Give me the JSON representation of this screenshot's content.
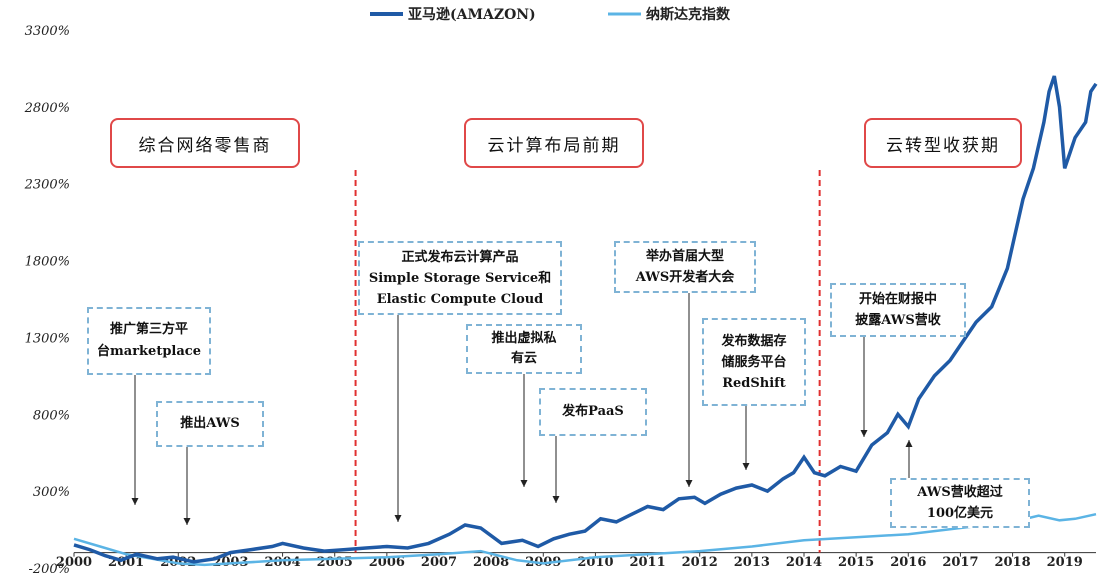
{
  "legend": {
    "amazon": "亚马逊(AMAZON)",
    "nasdaq": "纳斯达克指数"
  },
  "colors": {
    "amazon": "#1f5aa6",
    "nasdaq": "#5bb4e5",
    "phase_divider": "#e03030",
    "phase_border": "#e04848",
    "annotation_border": "#7fb3d5"
  },
  "phases": [
    {
      "label": "综合网络零售商"
    },
    {
      "label": "云计算布局前期"
    },
    {
      "label": "云转型收获期"
    }
  ],
  "phase_dividers_year": [
    2005.4,
    2014.3
  ],
  "annotations": [
    {
      "text": "推广第三方平\n台marketplace",
      "x": 2001.2
    },
    {
      "text": "推出AWS",
      "x": 2002.1
    },
    {
      "text": "正式发布云计算产品\nSimple Storage Service和\nElastic Compute Cloud",
      "x": 2006.0
    },
    {
      "text": "推出虚拟私\n有云",
      "x": 2008.5
    },
    {
      "text": "发布PaaS",
      "x": 2009.1
    },
    {
      "text": "举办首届大型\nAWS开发者大会",
      "x": 2011.7
    },
    {
      "text": "发布数据存\n储服务平台\nRedShift",
      "x": 2012.8
    },
    {
      "text": "开始在财报中\n披露AWS营收",
      "x": 2015.2
    },
    {
      "text": "AWS营收超过\n100亿美元",
      "x": 2016.0
    }
  ],
  "chart_data": {
    "type": "line",
    "title": "",
    "xlabel": "",
    "ylabel": "",
    "xlim": [
      2000,
      2019.6
    ],
    "ylim": [
      -200,
      3300
    ],
    "x_ticks": [
      "2000",
      "2001",
      "2002",
      "2003",
      "2004",
      "2005",
      "2006",
      "2007",
      "2008",
      "2009",
      "2010",
      "2011",
      "2012",
      "2013",
      "2014",
      "2015",
      "2016",
      "2017",
      "2018",
      "2019"
    ],
    "y_ticks": [
      "-200%",
      "300%",
      "800%",
      "1300%",
      "1800%",
      "2300%",
      "2800%",
      "3300%"
    ],
    "y_tick_values": [
      -200,
      300,
      800,
      1300,
      1800,
      2300,
      2800,
      3300
    ],
    "legend_position": "top-center",
    "grid": false,
    "series": [
      {
        "name": "亚马逊(AMAZON)",
        "x": [
          2000.0,
          2000.3,
          2000.6,
          2000.9,
          2001.2,
          2001.6,
          2001.9,
          2002.3,
          2002.7,
          2003.0,
          2003.4,
          2003.8,
          2004.0,
          2004.4,
          2004.8,
          2005.2,
          2005.6,
          2006.0,
          2006.4,
          2006.8,
          2007.2,
          2007.5,
          2007.8,
          2008.2,
          2008.6,
          2008.9,
          2009.2,
          2009.5,
          2009.8,
          2010.1,
          2010.4,
          2010.7,
          2011.0,
          2011.3,
          2011.6,
          2011.9,
          2012.1,
          2012.4,
          2012.7,
          2013.0,
          2013.3,
          2013.6,
          2013.8,
          2014.0,
          2014.2,
          2014.4,
          2014.7,
          2015.0,
          2015.3,
          2015.6,
          2015.8,
          2016.0,
          2016.2,
          2016.5,
          2016.8,
          2017.0,
          2017.3,
          2017.6,
          2017.9,
          2018.0,
          2018.2,
          2018.4,
          2018.6,
          2018.7,
          2018.8,
          2018.9,
          2019.0,
          2019.1,
          2019.2,
          2019.4,
          2019.5,
          2019.6
        ],
        "values": [
          -50,
          -80,
          -120,
          -150,
          -110,
          -140,
          -130,
          -160,
          -140,
          -100,
          -80,
          -60,
          -40,
          -70,
          -90,
          -80,
          -70,
          -60,
          -70,
          -40,
          20,
          80,
          60,
          -40,
          -20,
          -60,
          -10,
          20,
          40,
          120,
          100,
          150,
          200,
          180,
          250,
          260,
          220,
          280,
          320,
          340,
          300,
          380,
          420,
          520,
          420,
          400,
          460,
          430,
          600,
          680,
          800,
          720,
          900,
          1050,
          1150,
          1250,
          1400,
          1500,
          1750,
          1900,
          2200,
          2400,
          2700,
          2900,
          3000,
          2800,
          2400,
          2500,
          2600,
          2700,
          2900,
          2950
        ]
      },
      {
        "name": "纳斯达克指数",
        "x": [
          2000.0,
          2000.5,
          2001.0,
          2001.5,
          2002.0,
          2002.5,
          2003.0,
          2004.0,
          2005.0,
          2006.0,
          2007.0,
          2007.8,
          2008.5,
          2009.0,
          2010.0,
          2011.0,
          2012.0,
          2013.0,
          2014.0,
          2015.0,
          2016.0,
          2017.0,
          2018.0,
          2018.5,
          2018.9,
          2019.2,
          2019.6
        ],
        "values": [
          -10,
          -60,
          -110,
          -140,
          -170,
          -180,
          -170,
          -150,
          -140,
          -130,
          -110,
          -90,
          -150,
          -170,
          -130,
          -110,
          -90,
          -60,
          -20,
          0,
          20,
          60,
          100,
          140,
          110,
          120,
          150
        ]
      }
    ]
  }
}
